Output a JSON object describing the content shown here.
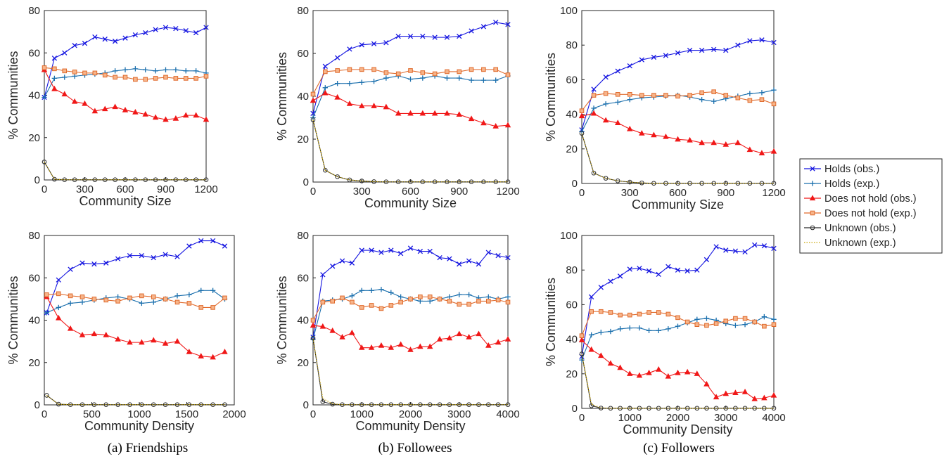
{
  "captions": [
    "(a) Friendships",
    "(b) Followees",
    "(c) Followers"
  ],
  "legend": {
    "placement": "right",
    "items": [
      {
        "label": "Holds (obs.)",
        "color": "#1515e0",
        "marker": "x",
        "style": "solid"
      },
      {
        "label": "Holds (exp.)",
        "color": "#1a6fad",
        "marker": "+",
        "style": "solid"
      },
      {
        "label": "Does not hold (obs.)",
        "color": "#f01818",
        "marker": "triangle",
        "style": "solid"
      },
      {
        "label": "Does not hold (exp.)",
        "color": "#e06a2c",
        "marker": "square",
        "style": "solid"
      },
      {
        "label": "Unknown (obs.)",
        "color": "#2b2b2b",
        "marker": "circle",
        "style": "solid"
      },
      {
        "label": "Unknown (exp.)",
        "color": "#c8a400",
        "marker": "none",
        "style": "dotted"
      }
    ]
  },
  "chart_data": [
    {
      "type": "line",
      "group": "(a) Friendships",
      "xlabel": "Community Size",
      "ylabel": "% Communities",
      "xlim": [
        0,
        1200
      ],
      "ylim": [
        0,
        80
      ],
      "xticks": [
        "0",
        "300",
        "600",
        "900",
        "1200"
      ],
      "yticks": [
        "0",
        "20",
        "40",
        "60",
        "80"
      ],
      "grid": false,
      "x": [
        0,
        75,
        150,
        225,
        300,
        375,
        450,
        525,
        600,
        675,
        750,
        825,
        900,
        975,
        1050,
        1125,
        1200
      ],
      "series": [
        {
          "name": "Holds (obs.)",
          "values": [
            39,
            57.5,
            60,
            63.5,
            64.5,
            67.5,
            66.5,
            65.5,
            67,
            68.5,
            69.5,
            71,
            72,
            71.5,
            70.5,
            69.5,
            72
          ]
        },
        {
          "name": "Holds (exp.)",
          "values": [
            39,
            48,
            48.5,
            49,
            49.5,
            50,
            50.5,
            51.5,
            52,
            52.5,
            52,
            51.5,
            52,
            52,
            51.5,
            51.5,
            50.5
          ]
        },
        {
          "name": "Does not hold (obs.)",
          "values": [
            52,
            43,
            40.5,
            37,
            36,
            32.5,
            33.5,
            34.5,
            33,
            32,
            31,
            29.5,
            28.5,
            29,
            30.5,
            30.5,
            28.5
          ]
        },
        {
          "name": "Does not hold (exp.)",
          "values": [
            53,
            52.5,
            51.5,
            51,
            50.5,
            50.5,
            49.5,
            48.5,
            48.5,
            47.5,
            47.5,
            48,
            48.5,
            48,
            48,
            48,
            49
          ]
        },
        {
          "name": "Unknown (obs.)",
          "values": [
            8.5,
            0.3,
            0.1,
            0.1,
            0.1,
            0.1,
            0.1,
            0.1,
            0.1,
            0.1,
            0.1,
            0.1,
            0.1,
            0.1,
            0.1,
            0.1,
            0.1
          ]
        },
        {
          "name": "Unknown (exp.)",
          "values": [
            8.5,
            0.3,
            0.1,
            0.1,
            0.1,
            0.1,
            0.1,
            0.1,
            0.1,
            0.1,
            0.1,
            0.1,
            0.1,
            0.1,
            0.1,
            0.1,
            0.1
          ]
        }
      ]
    },
    {
      "type": "line",
      "group": "(b) Followees",
      "xlabel": "Community Size",
      "ylabel": "% Communities",
      "xlim": [
        0,
        1200
      ],
      "ylim": [
        0,
        80
      ],
      "xticks": [
        "0",
        "300",
        "600",
        "900",
        "1200"
      ],
      "yticks": [
        "0",
        "20",
        "40",
        "60",
        "80"
      ],
      "grid": false,
      "x": [
        0,
        75,
        150,
        225,
        300,
        375,
        450,
        525,
        600,
        675,
        750,
        825,
        900,
        975,
        1050,
        1125,
        1200
      ],
      "series": [
        {
          "name": "Holds (obs.)",
          "values": [
            32,
            54,
            58,
            62,
            64,
            64.5,
            65,
            68,
            68,
            68,
            67.5,
            67.5,
            68,
            70.5,
            72.5,
            74.5,
            73.5
          ]
        },
        {
          "name": "Holds (exp.)",
          "values": [
            30,
            44,
            46,
            46,
            46.5,
            47,
            48.5,
            49.5,
            48,
            48.5,
            49.5,
            48.5,
            48.5,
            47.5,
            47.5,
            47.5,
            49.5
          ]
        },
        {
          "name": "Does not hold (obs.)",
          "values": [
            38,
            41.5,
            39.5,
            36.5,
            35.5,
            35.5,
            35,
            32,
            32,
            32,
            32,
            32,
            31.5,
            29.5,
            27.5,
            26,
            26.5
          ]
        },
        {
          "name": "Does not hold (exp.)",
          "values": [
            41,
            51.5,
            52,
            52.5,
            52.5,
            52.5,
            51,
            50.5,
            52,
            51,
            50.5,
            51.5,
            51.5,
            52.5,
            52.5,
            52.5,
            50
          ]
        },
        {
          "name": "Unknown (obs.)",
          "values": [
            29,
            5.5,
            2.5,
            1,
            0.5,
            0.2,
            0.1,
            0.1,
            0.1,
            0.1,
            0.1,
            0.1,
            0.1,
            0.1,
            0.1,
            0.1,
            0.1
          ]
        },
        {
          "name": "Unknown (exp.)",
          "values": [
            29,
            5.5,
            2.5,
            1,
            0.5,
            0.2,
            0.1,
            0.1,
            0.1,
            0.1,
            0.1,
            0.1,
            0.1,
            0.1,
            0.1,
            0.1,
            0.1
          ]
        }
      ]
    },
    {
      "type": "line",
      "group": "(c) Followers",
      "xlabel": "Community Size",
      "ylabel": "% Communities",
      "xlim": [
        0,
        1200
      ],
      "ylim": [
        0,
        100
      ],
      "xticks": [
        "0",
        "300",
        "600",
        "900",
        "1200"
      ],
      "yticks": [
        "0",
        "20",
        "40",
        "60",
        "80",
        "100"
      ],
      "grid": false,
      "x": [
        0,
        75,
        150,
        225,
        300,
        375,
        450,
        525,
        600,
        675,
        750,
        825,
        900,
        975,
        1050,
        1125,
        1200
      ],
      "series": [
        {
          "name": "Holds (obs.)",
          "values": [
            31,
            54.5,
            61.5,
            65,
            68,
            71.5,
            73,
            74,
            75.5,
            77,
            77,
            77.5,
            77,
            80,
            82.5,
            83,
            81.5
          ]
        },
        {
          "name": "Holds (exp.)",
          "values": [
            30,
            43.5,
            46,
            47,
            48.5,
            49.5,
            50,
            50.5,
            51,
            50,
            48.5,
            47.5,
            49,
            50.5,
            52,
            52.5,
            54
          ]
        },
        {
          "name": "Does not hold (obs.)",
          "values": [
            39,
            40.5,
            36.5,
            35,
            31.5,
            29,
            28,
            27,
            25.5,
            25,
            23.5,
            23.5,
            22.5,
            23.5,
            19.5,
            17.5,
            18.5
          ]
        },
        {
          "name": "Does not hold (exp.)",
          "values": [
            42,
            51,
            52,
            51.5,
            51.5,
            51,
            51,
            51,
            50.5,
            51,
            52.5,
            53,
            51,
            49.5,
            48,
            48.5,
            46
          ]
        },
        {
          "name": "Unknown (obs.)",
          "values": [
            29,
            6,
            3,
            1.5,
            0.8,
            0.3,
            0.1,
            0.1,
            0.1,
            0.1,
            0.1,
            0.1,
            0.1,
            0.1,
            0.1,
            0.1,
            0.1
          ]
        },
        {
          "name": "Unknown (exp.)",
          "values": [
            29,
            6,
            3,
            1.5,
            0.8,
            0.3,
            0.1,
            0.1,
            0.1,
            0.1,
            0.1,
            0.1,
            0.1,
            0.1,
            0.1,
            0.1,
            0.1
          ]
        }
      ]
    },
    {
      "type": "line",
      "group": "(a) Friendships",
      "xlabel": "Community Density",
      "ylabel": "% Communities",
      "xlim": [
        0,
        2000
      ],
      "ylim": [
        0,
        80
      ],
      "xticks": [
        "0",
        "500",
        "1000",
        "1500",
        "2000"
      ],
      "yticks": [
        "0",
        "20",
        "40",
        "60",
        "80"
      ],
      "grid": false,
      "x": [
        25,
        150,
        275,
        400,
        525,
        650,
        775,
        900,
        1025,
        1150,
        1275,
        1400,
        1525,
        1650,
        1775,
        1900
      ],
      "series": [
        {
          "name": "Holds (obs.)",
          "values": [
            43.5,
            59,
            64,
            67,
            66.5,
            67,
            69,
            70.5,
            70.5,
            69.5,
            71,
            70,
            75,
            77.5,
            77.5,
            75
          ]
        },
        {
          "name": "Holds (exp.)",
          "values": [
            43.5,
            46,
            48,
            48.5,
            49.5,
            50.5,
            51,
            50,
            48,
            48.5,
            50,
            51.5,
            52,
            54,
            54,
            50
          ]
        },
        {
          "name": "Does not hold (obs.)",
          "values": [
            51,
            41,
            36,
            33,
            33.5,
            33,
            31,
            29.5,
            29.5,
            30.5,
            29,
            30,
            25,
            23,
            22.5,
            25
          ]
        },
        {
          "name": "Does not hold (exp.)",
          "values": [
            52,
            52.5,
            51.5,
            51,
            50,
            49.5,
            49,
            50.5,
            51.5,
            51,
            50,
            48.5,
            48,
            46,
            46,
            50.5
          ]
        },
        {
          "name": "Unknown (obs.)",
          "values": [
            4.5,
            0.3,
            0.1,
            0.1,
            0.1,
            0.1,
            0.1,
            0.1,
            0.1,
            0.1,
            0.1,
            0.1,
            0.1,
            0.1,
            0.1,
            0.1
          ]
        },
        {
          "name": "Unknown (exp.)",
          "values": [
            4.5,
            0.3,
            0.1,
            0.1,
            0.1,
            0.1,
            0.1,
            0.1,
            0.1,
            0.1,
            0.1,
            0.1,
            0.1,
            0.1,
            0.1,
            0.1
          ]
        }
      ]
    },
    {
      "type": "line",
      "group": "(b) Followees",
      "xlabel": "Community Density",
      "ylabel": "% Communities",
      "xlim": [
        0,
        4000
      ],
      "ylim": [
        0,
        80
      ],
      "xticks": [
        "0",
        "1000",
        "2000",
        "3000",
        "4000"
      ],
      "yticks": [
        "0",
        "20",
        "40",
        "60",
        "80"
      ],
      "grid": false,
      "x": [
        0,
        200,
        400,
        600,
        800,
        1000,
        1200,
        1400,
        1600,
        1800,
        2000,
        2200,
        2400,
        2600,
        2800,
        3000,
        3200,
        3400,
        3600,
        3800,
        4000
      ],
      "series": [
        {
          "name": "Holds (obs.)",
          "values": [
            32,
            61.5,
            65.5,
            68,
            67,
            73,
            73,
            72,
            73,
            71.5,
            74,
            72.5,
            72.5,
            69.5,
            69,
            66.5,
            68,
            66.5,
            72,
            70.5,
            69.5
          ]
        },
        {
          "name": "Holds (exp.)",
          "values": [
            31,
            49,
            49.5,
            50,
            51.5,
            54,
            54,
            54.5,
            53,
            51,
            50,
            49,
            49,
            50,
            51,
            52,
            52,
            50.5,
            51,
            50,
            51
          ]
        },
        {
          "name": "Does not hold (obs.)",
          "values": [
            37.5,
            37,
            35,
            32,
            34,
            27,
            27,
            28,
            27,
            28.5,
            26,
            27.5,
            27.5,
            31,
            31.5,
            33.5,
            32,
            33.5,
            28,
            29.5,
            31
          ]
        },
        {
          "name": "Does not hold (exp.)",
          "values": [
            40,
            48.5,
            49,
            50.5,
            48.5,
            46,
            47,
            45.5,
            47,
            48.5,
            50,
            51,
            51,
            50,
            49,
            47.5,
            47.5,
            49,
            49,
            49.5,
            48.5
          ]
        },
        {
          "name": "Unknown (obs.)",
          "values": [
            31.5,
            1.5,
            0.3,
            0.1,
            0.1,
            0.1,
            0.1,
            0.1,
            0.1,
            0.1,
            0.1,
            0.1,
            0.1,
            0.1,
            0.1,
            0.1,
            0.1,
            0.1,
            0.1,
            0.1,
            0.1
          ]
        },
        {
          "name": "Unknown (exp.)",
          "values": [
            31.5,
            3,
            0.5,
            0.1,
            0.1,
            0.1,
            0.1,
            0.1,
            0.1,
            0.1,
            0.1,
            0.1,
            0.1,
            0.1,
            0.1,
            0.1,
            0.1,
            0.1,
            0.1,
            0.1,
            0.1
          ]
        }
      ]
    },
    {
      "type": "line",
      "group": "(c) Followers",
      "xlabel": "Community Density",
      "ylabel": "% Communities",
      "xlim": [
        0,
        4000
      ],
      "ylim": [
        0,
        100
      ],
      "xticks": [
        "0",
        "1000",
        "2000",
        "3000",
        "4000"
      ],
      "yticks": [
        "0",
        "20",
        "40",
        "60",
        "80",
        "100"
      ],
      "grid": false,
      "x": [
        0,
        200,
        400,
        600,
        800,
        1000,
        1200,
        1400,
        1600,
        1800,
        2000,
        2200,
        2400,
        2600,
        2800,
        3000,
        3200,
        3400,
        3600,
        3800,
        4000
      ],
      "series": [
        {
          "name": "Holds (obs.)",
          "values": [
            30,
            64.5,
            70,
            73.5,
            76.5,
            80.5,
            81,
            79.5,
            77.5,
            82,
            80,
            79.5,
            80,
            86,
            93.5,
            91.5,
            91,
            90.5,
            94.5,
            94,
            92.5
          ]
        },
        {
          "name": "Holds (exp.)",
          "values": [
            28,
            42.5,
            44,
            44.5,
            46,
            46.5,
            46.5,
            45,
            45,
            46,
            47.5,
            49.5,
            51.5,
            52,
            51,
            49,
            48,
            48.5,
            50,
            53,
            51.5
          ]
        },
        {
          "name": "Does not hold (obs.)",
          "values": [
            39.5,
            34,
            30.5,
            26,
            23.5,
            20,
            19,
            20.5,
            22.5,
            18.5,
            20.5,
            21,
            20,
            14,
            6.5,
            8.5,
            9,
            9.5,
            5.5,
            6,
            7.5
          ]
        },
        {
          "name": "Does not hold (exp.)",
          "values": [
            42,
            56,
            56,
            55.5,
            54,
            54,
            54.5,
            55.5,
            55.5,
            54.5,
            52.5,
            50,
            48.5,
            48,
            49,
            50.5,
            52,
            52,
            50,
            47.5,
            48.5
          ]
        },
        {
          "name": "Unknown (obs.)",
          "values": [
            31.5,
            1.5,
            0.2,
            0.1,
            0.1,
            0.1,
            0.1,
            0.1,
            0.1,
            0.1,
            0.1,
            0.1,
            0.1,
            0.1,
            0.1,
            0.1,
            0.1,
            0.1,
            0.1,
            0.1,
            0.1
          ]
        },
        {
          "name": "Unknown (exp.)",
          "values": [
            31.5,
            2.5,
            0.3,
            0.1,
            0.1,
            0.1,
            0.1,
            0.1,
            0.1,
            0.1,
            0.1,
            0.1,
            0.1,
            0.1,
            0.1,
            0.1,
            0.1,
            0.1,
            0.1,
            0.1,
            0.1
          ]
        }
      ]
    }
  ]
}
